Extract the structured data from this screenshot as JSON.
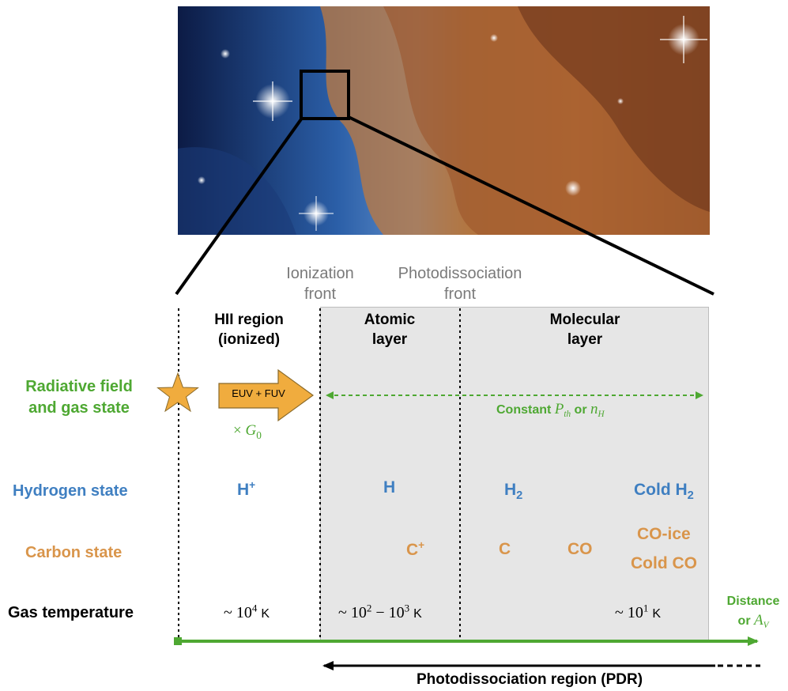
{
  "fronts": {
    "ionization": "Ionization\nfront",
    "photodissociation": "Photodissociation\nfront"
  },
  "regions": {
    "hii": "HII region\n(ionized)",
    "atomic": "Atomic\nlayer",
    "molecular": "Molecular\nlayer"
  },
  "rows": {
    "radiative": "Radiative field\nand gas state",
    "hydrogen": "Hydrogen state",
    "carbon": "Carbon state",
    "temperature": "Gas temperature"
  },
  "radiation": {
    "arrow_label": "EUV + FUV",
    "scale_prefix": "×",
    "scale_symbol": "G",
    "scale_sub": "0",
    "constant_prefix": "Constant",
    "pth_symbol": "P",
    "pth_sub": "th",
    "or_word": "or",
    "nh_symbol": "n",
    "nh_sub": "H"
  },
  "hydrogen": {
    "ionized": "H",
    "ionized_sup": "+",
    "atomic": "H",
    "molecular": "H",
    "molecular_sub": "2",
    "cold_molecular": "Cold H",
    "cold_molecular_sub": "2"
  },
  "carbon": {
    "ion": "C",
    "ion_sup": "+",
    "neutral": "C",
    "co": "CO",
    "co_ice": "CO-ice",
    "cold_co": "Cold CO"
  },
  "temperatures": {
    "hii": {
      "tilde": "~",
      "base": "10",
      "exp": "4",
      "unit": "K"
    },
    "atomic": {
      "tilde": "~",
      "base1": "10",
      "exp1": "2",
      "dash": "−",
      "base2": "10",
      "exp2": "3",
      "unit": "K"
    },
    "molecular": {
      "tilde": "~",
      "base": "10",
      "exp": "1",
      "unit": "K"
    }
  },
  "axis": {
    "label_line1": "Distance",
    "label_or": "or",
    "label_symbol": "A",
    "label_sub": "V"
  },
  "pdr_label": "Photodissociation region (PDR)",
  "colors": {
    "green": "#4ea832",
    "blue": "#3f7fc1",
    "orange": "#d9954b",
    "arrow_fill": "#f0ac3e",
    "star": "#f0ac3e",
    "shade": "#e6e6e6"
  }
}
